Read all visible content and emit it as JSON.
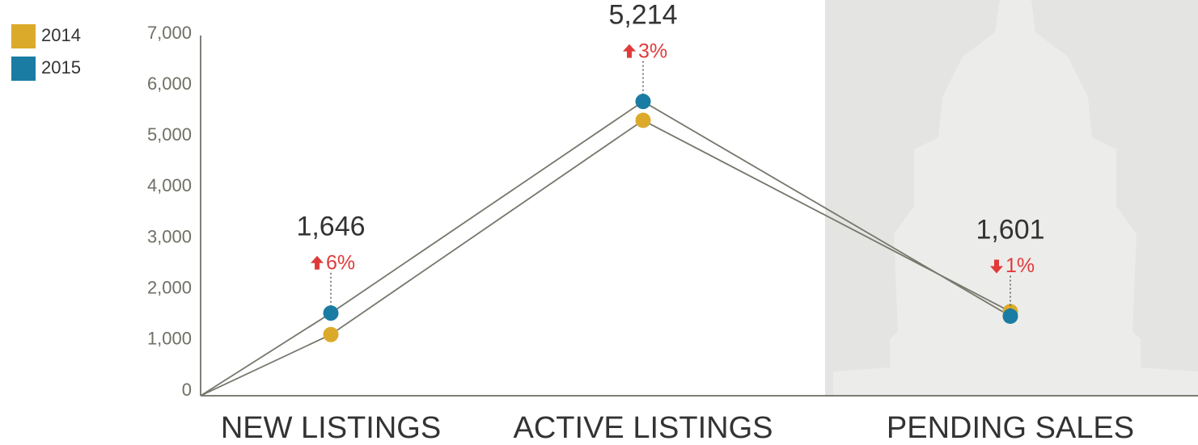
{
  "chart_data": {
    "type": "line",
    "categories": [
      null,
      "NEW LISTINGS",
      "ACTIVE LISTINGS",
      "PENDING SALES"
    ],
    "series": [
      {
        "name": "2014",
        "color": "#dcaa2a",
        "values": [
          0,
          1200,
          5400,
          1650
        ]
      },
      {
        "name": "2015",
        "color": "#1a7ca3",
        "values": [
          0,
          1620,
          5770,
          1560
        ]
      }
    ],
    "line_color": "#77776d",
    "ylim": [
      0,
      7000
    ],
    "yticks": [
      0,
      {
        "value": 1000,
        "label": "1,000"
      },
      {
        "value": 2000,
        "label": "2,000"
      },
      {
        "value": 3000,
        "label": "3,000"
      },
      {
        "value": 4000,
        "label": "4,000"
      },
      {
        "value": 5000,
        "label": "5,000"
      },
      {
        "value": 6000,
        "label": "6,000"
      },
      {
        "value": 7000,
        "label": "7,000"
      }
    ],
    "legend": "top-left",
    "annotations": [
      {
        "category": 1,
        "text": "1,646",
        "change": "6%",
        "direction": "up"
      },
      {
        "category": 2,
        "text": "5,214",
        "change": "3%",
        "direction": "up"
      },
      {
        "category": 3,
        "text": "1,601",
        "change": "1%",
        "direction": "down"
      }
    ]
  }
}
